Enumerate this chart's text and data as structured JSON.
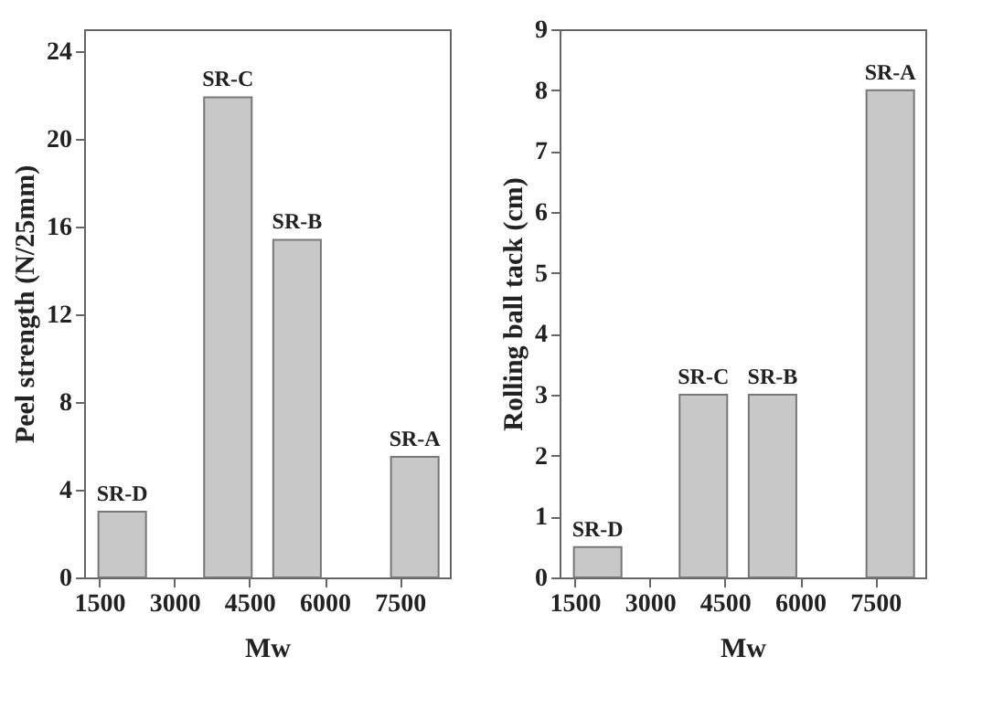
{
  "chart_data": [
    {
      "type": "bar",
      "xlabel": "Mw",
      "ylabel": "Peel strength (N/25mm)",
      "x": [
        1960,
        4070,
        5450,
        7800
      ],
      "values": [
        3,
        21.9,
        15.4,
        5.5
      ],
      "color": "#c8c8c8",
      "xlim": [
        1200,
        8500
      ],
      "xticks": [
        1500,
        3000,
        4500,
        6000,
        7500
      ],
      "ylim": [
        0,
        25
      ],
      "yticks": [
        0,
        4,
        8,
        12,
        16,
        20,
        24
      ],
      "grid": false,
      "annotations": [
        {
          "text": "SR-D",
          "x": 1960,
          "y": 3
        },
        {
          "text": "SR-C",
          "x": 4070,
          "y": 21.9
        },
        {
          "text": "SR-B",
          "x": 5450,
          "y": 15.4
        },
        {
          "text": "SR-A",
          "x": 7800,
          "y": 5.5
        }
      ]
    },
    {
      "type": "bar",
      "xlabel": "Mw",
      "ylabel": "Rolling ball tack (cm)",
      "x": [
        1960,
        4070,
        5450,
        7800
      ],
      "values": [
        0.5,
        3,
        3,
        8
      ],
      "color": "#c8c8c8",
      "xlim": [
        1200,
        8500
      ],
      "xticks": [
        1500,
        3000,
        4500,
        6000,
        7500
      ],
      "ylim": [
        0,
        9
      ],
      "yticks": [
        0,
        1,
        2,
        3,
        4,
        5,
        6,
        7,
        8,
        9
      ],
      "grid": false,
      "annotations": [
        {
          "text": "SR-D",
          "x": 1960,
          "y": 0.5
        },
        {
          "text": "SR-C",
          "x": 4070,
          "y": 3
        },
        {
          "text": "SR-B",
          "x": 5450,
          "y": 3
        },
        {
          "text": "SR-A",
          "x": 7800,
          "y": 8
        }
      ]
    }
  ]
}
